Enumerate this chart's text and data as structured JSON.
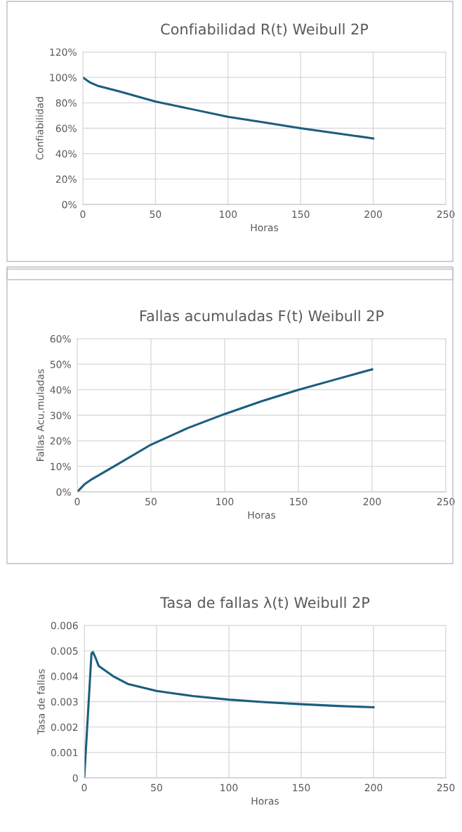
{
  "chart_data": [
    {
      "type": "line",
      "title": "Confiabilidad R(t) Weibull 2P",
      "xlabel": "Horas",
      "ylabel": "Confiabilidad",
      "grid": true,
      "legend": false,
      "marker": "none",
      "line_style": "solid",
      "xlim": [
        0,
        250
      ],
      "xticks": [
        0,
        50,
        100,
        150,
        200,
        250
      ],
      "ylim": [
        0,
        1.2
      ],
      "yticks": [
        {
          "value": 0,
          "label": "0%"
        },
        {
          "value": 0.2,
          "label": "20%"
        },
        {
          "value": 0.4,
          "label": "40%"
        },
        {
          "value": 0.6,
          "label": "60%"
        },
        {
          "value": 0.8,
          "label": "80%"
        },
        {
          "value": 1.0,
          "label": "100%"
        },
        {
          "value": 1.2,
          "label": "120%"
        }
      ],
      "x": [
        0,
        5,
        10,
        25,
        50,
        75,
        100,
        125,
        150,
        175,
        200
      ],
      "series": [
        {
          "color": "#1b5e7e",
          "values": [
            1.0,
            0.96,
            0.935,
            0.89,
            0.81,
            0.75,
            0.69,
            0.645,
            0.6,
            0.56,
            0.52
          ]
        }
      ]
    },
    {
      "type": "line",
      "title": "Fallas acumuladas F(t) Weibull 2P",
      "xlabel": "Horas",
      "ylabel": "Fallas Acu,muladas",
      "grid": true,
      "legend": false,
      "marker": "none",
      "line_style": "solid",
      "xlim": [
        0,
        250
      ],
      "xticks": [
        0,
        50,
        100,
        150,
        200,
        250
      ],
      "ylim": [
        0,
        0.6
      ],
      "yticks": [
        {
          "value": 0,
          "label": "0%"
        },
        {
          "value": 0.1,
          "label": "10%"
        },
        {
          "value": 0.2,
          "label": "20%"
        },
        {
          "value": 0.3,
          "label": "30%"
        },
        {
          "value": 0.4,
          "label": "40%"
        },
        {
          "value": 0.5,
          "label": "50%"
        },
        {
          "value": 0.6,
          "label": "60%"
        }
      ],
      "x": [
        0,
        5,
        10,
        25,
        50,
        75,
        100,
        125,
        150,
        175,
        200
      ],
      "series": [
        {
          "color": "#1b5e7e",
          "values": [
            0,
            0.03,
            0.05,
            0.1,
            0.185,
            0.25,
            0.305,
            0.355,
            0.4,
            0.44,
            0.48
          ]
        }
      ]
    },
    {
      "type": "line",
      "title": "Tasa de fallas λ(t) Weibull 2P",
      "xlabel": "Horas",
      "ylabel": "Tasa de fallas",
      "grid": true,
      "legend": false,
      "marker": "none",
      "line_style": "solid",
      "xlim": [
        0,
        250
      ],
      "xticks": [
        0,
        50,
        100,
        150,
        200,
        250
      ],
      "ylim": [
        0,
        0.006
      ],
      "yticks": [
        0,
        0.001,
        0.002,
        0.003,
        0.004,
        0.005,
        0.006
      ],
      "x": [
        0,
        5,
        6,
        8,
        10,
        15,
        20,
        30,
        50,
        75,
        100,
        125,
        150,
        175,
        200
      ],
      "series": [
        {
          "color": "#1b5e7e",
          "values": [
            0,
            0.0049,
            0.00495,
            0.0047,
            0.0044,
            0.0042,
            0.004,
            0.0037,
            0.00342,
            0.00322,
            0.00308,
            0.00298,
            0.0029,
            0.00283,
            0.00278
          ]
        }
      ]
    }
  ]
}
